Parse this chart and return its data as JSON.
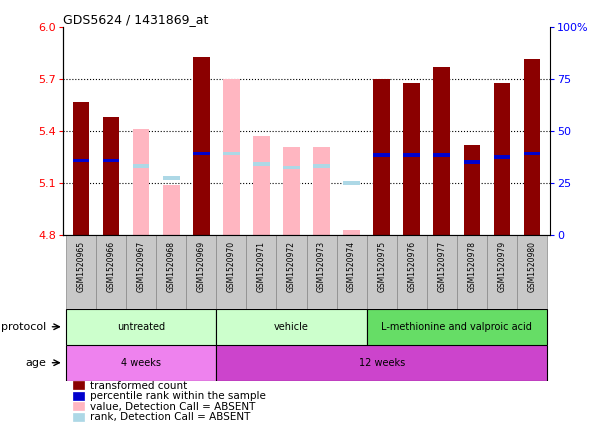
{
  "title": "GDS5624 / 1431869_at",
  "samples": [
    "GSM1520965",
    "GSM1520966",
    "GSM1520967",
    "GSM1520968",
    "GSM1520969",
    "GSM1520970",
    "GSM1520971",
    "GSM1520972",
    "GSM1520973",
    "GSM1520974",
    "GSM1520975",
    "GSM1520976",
    "GSM1520977",
    "GSM1520978",
    "GSM1520979",
    "GSM1520980"
  ],
  "bar_values": [
    5.57,
    5.48,
    null,
    null,
    5.83,
    null,
    null,
    null,
    null,
    null,
    5.7,
    5.68,
    5.77,
    5.32,
    5.68,
    5.82
  ],
  "bar_absent": [
    null,
    null,
    5.41,
    5.09,
    null,
    5.7,
    5.37,
    5.31,
    5.31,
    4.83,
    null,
    null,
    null,
    null,
    null,
    null
  ],
  "rank_values": [
    5.23,
    5.23,
    null,
    null,
    5.27,
    null,
    null,
    null,
    null,
    null,
    5.26,
    5.26,
    5.26,
    5.22,
    5.25,
    5.27
  ],
  "rank_absent": [
    null,
    null,
    5.2,
    5.13,
    null,
    5.27,
    5.21,
    5.19,
    5.2,
    5.1,
    null,
    null,
    null,
    null,
    null,
    null
  ],
  "ymin": 4.8,
  "ymax": 6.0,
  "yticks": [
    4.8,
    5.1,
    5.4,
    5.7,
    6.0
  ],
  "right_yticks": [
    0,
    25,
    50,
    75,
    100
  ],
  "bar_color": "#8B0000",
  "bar_absent_color": "#FFB6C1",
  "rank_color": "#0000CD",
  "rank_absent_color": "#ADD8E6",
  "bar_width": 0.55,
  "proto_groups": [
    {
      "label": "untreated",
      "start": 0,
      "end": 4,
      "color": "#CCFFCC"
    },
    {
      "label": "vehicle",
      "start": 5,
      "end": 9,
      "color": "#CCFFCC"
    },
    {
      "label": "L-methionine and valproic acid",
      "start": 10,
      "end": 15,
      "color": "#66DD66"
    }
  ],
  "age_groups": [
    {
      "label": "4 weeks",
      "start": 0,
      "end": 4,
      "color": "#EE82EE"
    },
    {
      "label": "12 weeks",
      "start": 5,
      "end": 15,
      "color": "#CC44CC"
    }
  ],
  "legend_items": [
    {
      "color": "#8B0000",
      "label": "transformed count"
    },
    {
      "color": "#0000CD",
      "label": "percentile rank within the sample"
    },
    {
      "color": "#FFB6C1",
      "label": "value, Detection Call = ABSENT"
    },
    {
      "color": "#ADD8E6",
      "label": "rank, Detection Call = ABSENT"
    }
  ]
}
